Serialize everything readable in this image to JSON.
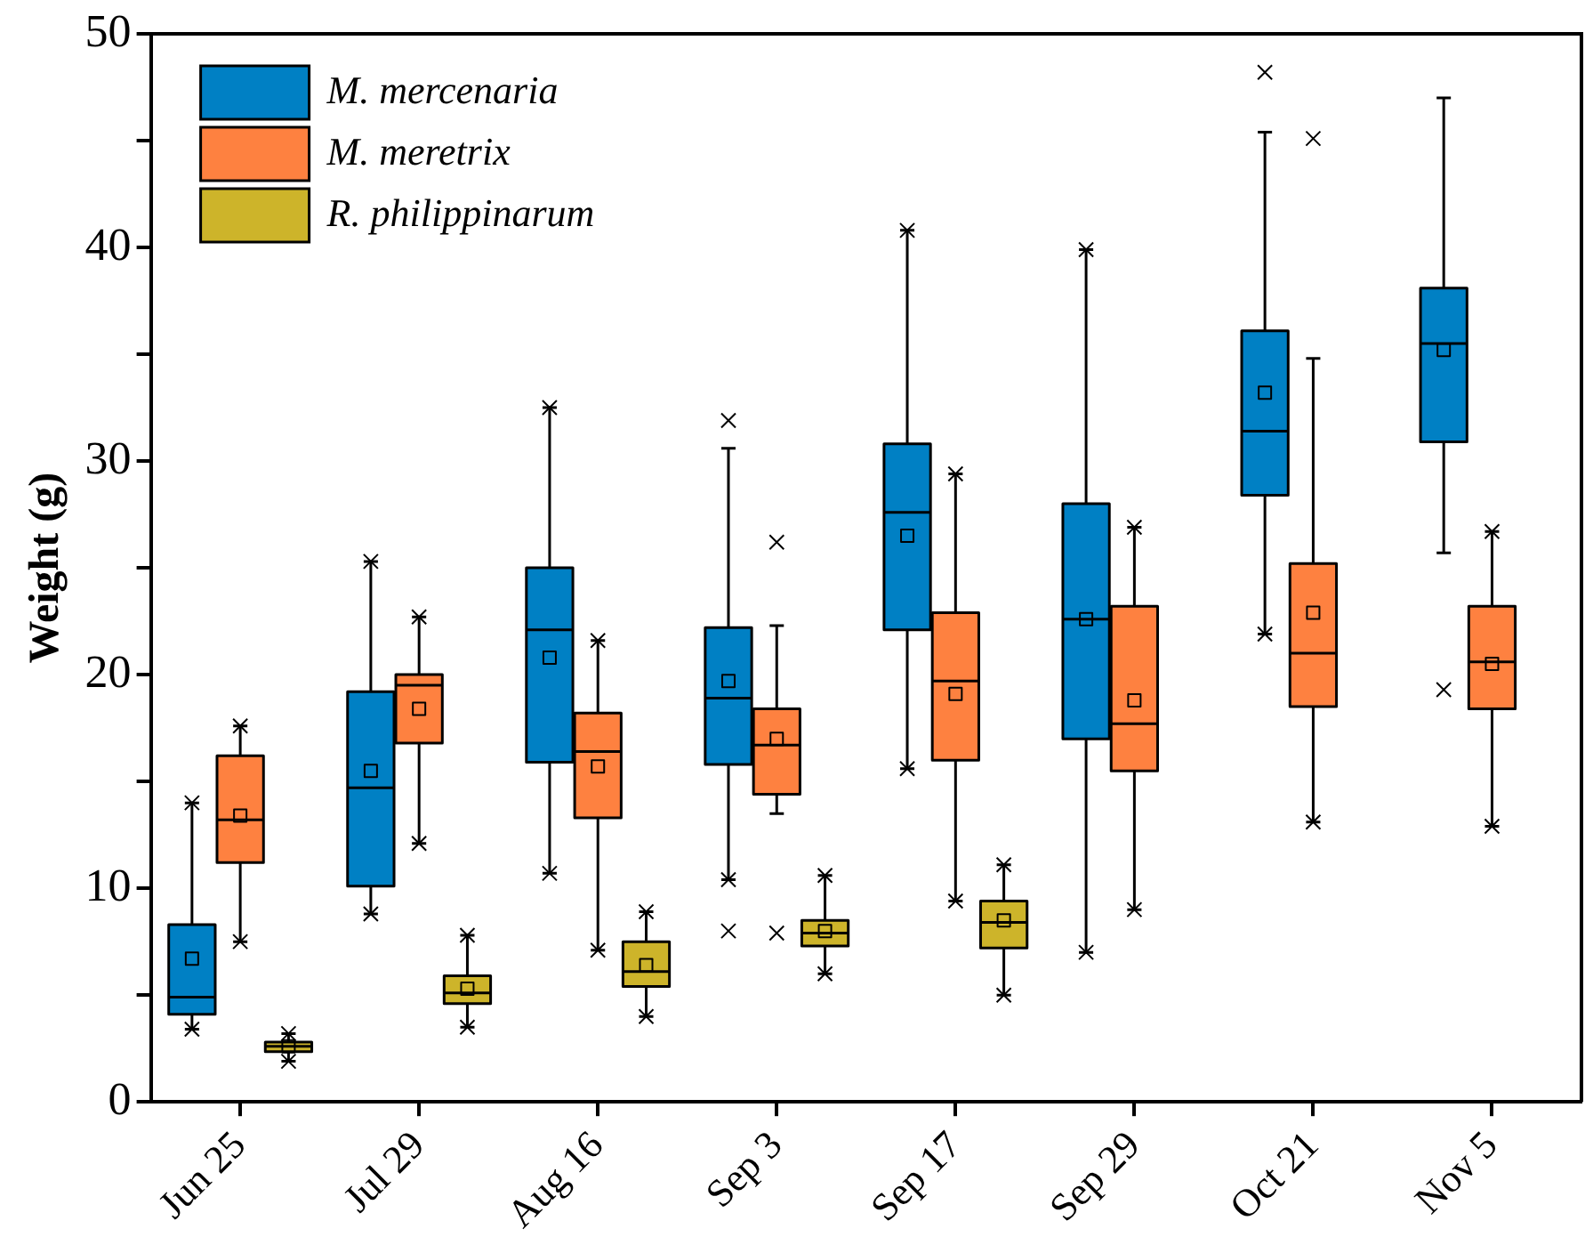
{
  "chart_data": {
    "type": "box",
    "ylabel": "Weight (g)",
    "categories": [
      "Jun 25",
      "Jul 29",
      "Aug 16",
      "Sep 3",
      "Sep 17",
      "Sep 29",
      "Oct 21",
      "Nov 5"
    ],
    "ylim": [
      0,
      50
    ],
    "yticks": [
      0,
      {
        "value": 5,
        "label": null
      },
      10,
      {
        "value": 15,
        "label": null
      },
      20,
      {
        "value": 25,
        "label": null
      },
      30,
      {
        "value": 35,
        "label": null
      },
      40,
      {
        "value": 45,
        "label": null
      },
      50
    ],
    "legend": "top left",
    "marker": "cross",
    "series": [
      {
        "name": "M. mercenaria",
        "color": "#0080c4",
        "boxes": [
          {
            "low": 3.4,
            "q1": 4.1,
            "median": 4.9,
            "q3": 8.3,
            "high": 14.0,
            "mean": 6.7,
            "outliers": [
              14.0,
              3.4
            ]
          },
          {
            "low": 8.8,
            "q1": 10.1,
            "median": 14.7,
            "q3": 19.2,
            "high": 25.3,
            "mean": 15.5,
            "outliers": [
              25.3,
              8.8
            ]
          },
          {
            "low": 10.7,
            "q1": 15.9,
            "median": 22.1,
            "q3": 25.0,
            "high": 32.5,
            "mean": 20.8,
            "outliers": [
              32.5,
              10.7
            ]
          },
          {
            "low": 10.4,
            "q1": 15.8,
            "median": 18.9,
            "q3": 22.2,
            "high": 30.6,
            "mean": 19.7,
            "outliers": [
              31.9,
              10.4,
              8.0
            ]
          },
          {
            "low": 15.6,
            "q1": 22.1,
            "median": 27.6,
            "q3": 30.8,
            "high": 40.8,
            "mean": 26.5,
            "outliers": [
              40.8,
              15.6
            ]
          },
          {
            "low": 7.0,
            "q1": 17.0,
            "median": 22.6,
            "q3": 28.0,
            "high": 39.9,
            "mean": 22.6,
            "outliers": [
              39.9,
              7.0
            ]
          },
          {
            "low": 21.9,
            "q1": 28.4,
            "median": 31.4,
            "q3": 36.1,
            "high": 45.4,
            "mean": 33.2,
            "outliers": [
              48.2,
              21.9
            ]
          },
          {
            "low": 25.7,
            "q1": 30.9,
            "median": 35.5,
            "q3": 38.1,
            "high": 47.0,
            "mean": 35.2,
            "outliers": [
              19.3
            ]
          }
        ]
      },
      {
        "name": "M. meretrix",
        "color": "#fe8140",
        "boxes": [
          {
            "low": 7.5,
            "q1": 11.2,
            "median": 13.2,
            "q3": 16.2,
            "high": 17.6,
            "mean": 13.4,
            "outliers": [
              17.6,
              7.5
            ]
          },
          {
            "low": 12.1,
            "q1": 16.8,
            "median": 19.5,
            "q3": 20.0,
            "high": 22.7,
            "mean": 18.4,
            "outliers": [
              22.7,
              12.1
            ]
          },
          {
            "low": 7.1,
            "q1": 13.3,
            "median": 16.4,
            "q3": 18.2,
            "high": 21.6,
            "mean": 15.7,
            "outliers": [
              21.6,
              7.1
            ]
          },
          {
            "low": 13.5,
            "q1": 14.4,
            "median": 16.7,
            "q3": 18.4,
            "high": 22.3,
            "mean": 17.0,
            "outliers": [
              26.2,
              7.9
            ]
          },
          {
            "low": 9.4,
            "q1": 16.0,
            "median": 19.7,
            "q3": 22.9,
            "high": 29.4,
            "mean": 19.1,
            "outliers": [
              29.4,
              9.4
            ]
          },
          {
            "low": 9.0,
            "q1": 15.5,
            "median": 17.7,
            "q3": 23.2,
            "high": 26.9,
            "mean": 18.8,
            "outliers": [
              26.9,
              9.0
            ]
          },
          {
            "low": 13.1,
            "q1": 18.5,
            "median": 21.0,
            "q3": 25.2,
            "high": 34.8,
            "mean": 22.9,
            "outliers": [
              45.1,
              13.1
            ]
          },
          {
            "low": 12.9,
            "q1": 18.4,
            "median": 20.6,
            "q3": 23.2,
            "high": 26.7,
            "mean": 20.5,
            "outliers": [
              26.7,
              12.9
            ]
          }
        ]
      },
      {
        "name": "R. philippinarum",
        "color": "#cdb42a",
        "boxes": [
          {
            "low": 1.9,
            "q1": 2.35,
            "median": 2.6,
            "q3": 2.8,
            "high": 3.2,
            "mean": 2.6,
            "outliers": [
              3.2,
              1.9
            ]
          },
          {
            "low": 3.5,
            "q1": 4.6,
            "median": 5.1,
            "q3": 5.9,
            "high": 7.8,
            "mean": 5.3,
            "outliers": [
              7.8,
              3.5
            ]
          },
          {
            "low": 4.0,
            "q1": 5.4,
            "median": 6.1,
            "q3": 7.5,
            "high": 8.9,
            "mean": 6.4,
            "outliers": [
              8.9,
              4.0
            ]
          },
          {
            "low": 6.0,
            "q1": 7.3,
            "median": 7.9,
            "q3": 8.5,
            "high": 10.6,
            "mean": 8.0,
            "outliers": [
              10.6,
              6.0
            ]
          },
          {
            "low": 5.0,
            "q1": 7.2,
            "median": 8.4,
            "q3": 9.4,
            "high": 11.1,
            "mean": 8.5,
            "outliers": [
              11.1,
              5.0
            ]
          },
          null,
          null,
          null
        ]
      }
    ]
  }
}
